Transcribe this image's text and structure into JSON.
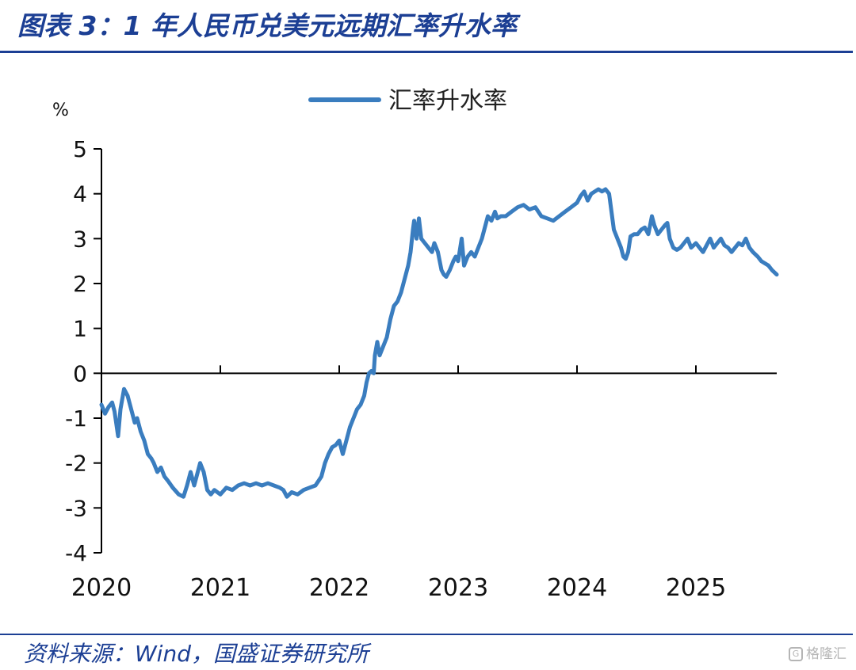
{
  "figure": {
    "title": "图表 3：1 年人民币兑美元远期汇率升水率",
    "source": "资料来源：Wind，国盛证券研究所",
    "watermark": "格隆汇"
  },
  "colors": {
    "line": "#3a7dbf",
    "accent": "#1c3f94",
    "axis": "#000000"
  },
  "chart_data": {
    "type": "line",
    "title": "",
    "xlabel": "",
    "ylabel": "%",
    "x_ticks": [
      "2020",
      "2021",
      "2022",
      "2023",
      "2024",
      "2025"
    ],
    "xlim": [
      2020.0,
      2025.68
    ],
    "ylim": [
      -4,
      5
    ],
    "y_ticks": [
      5,
      4,
      3,
      2,
      1,
      0,
      -1,
      -2,
      -3,
      -4
    ],
    "legend": "top-center",
    "grid": false,
    "series": [
      {
        "name": "汇率升水率",
        "points": [
          [
            2020.0,
            -0.7
          ],
          [
            2020.03,
            -0.9
          ],
          [
            2020.06,
            -0.75
          ],
          [
            2020.09,
            -0.65
          ],
          [
            2020.11,
            -0.85
          ],
          [
            2020.14,
            -1.4
          ],
          [
            2020.16,
            -0.8
          ],
          [
            2020.19,
            -0.35
          ],
          [
            2020.22,
            -0.5
          ],
          [
            2020.25,
            -0.8
          ],
          [
            2020.28,
            -1.1
          ],
          [
            2020.3,
            -1.0
          ],
          [
            2020.33,
            -1.3
          ],
          [
            2020.36,
            -1.5
          ],
          [
            2020.39,
            -1.8
          ],
          [
            2020.42,
            -1.9
          ],
          [
            2020.44,
            -2.0
          ],
          [
            2020.47,
            -2.2
          ],
          [
            2020.5,
            -2.1
          ],
          [
            2020.53,
            -2.3
          ],
          [
            2020.56,
            -2.4
          ],
          [
            2020.6,
            -2.55
          ],
          [
            2020.65,
            -2.7
          ],
          [
            2020.69,
            -2.75
          ],
          [
            2020.72,
            -2.5
          ],
          [
            2020.75,
            -2.2
          ],
          [
            2020.78,
            -2.5
          ],
          [
            2020.8,
            -2.3
          ],
          [
            2020.83,
            -2.0
          ],
          [
            2020.86,
            -2.2
          ],
          [
            2020.89,
            -2.6
          ],
          [
            2020.92,
            -2.7
          ],
          [
            2020.95,
            -2.6
          ],
          [
            2021.0,
            -2.7
          ],
          [
            2021.05,
            -2.55
          ],
          [
            2021.1,
            -2.6
          ],
          [
            2021.15,
            -2.5
          ],
          [
            2021.2,
            -2.45
          ],
          [
            2021.25,
            -2.5
          ],
          [
            2021.3,
            -2.45
          ],
          [
            2021.35,
            -2.5
          ],
          [
            2021.4,
            -2.45
          ],
          [
            2021.45,
            -2.5
          ],
          [
            2021.5,
            -2.55
          ],
          [
            2021.53,
            -2.6
          ],
          [
            2021.56,
            -2.75
          ],
          [
            2021.6,
            -2.65
          ],
          [
            2021.65,
            -2.7
          ],
          [
            2021.7,
            -2.6
          ],
          [
            2021.75,
            -2.55
          ],
          [
            2021.8,
            -2.5
          ],
          [
            2021.85,
            -2.3
          ],
          [
            2021.88,
            -2.0
          ],
          [
            2021.91,
            -1.8
          ],
          [
            2021.94,
            -1.65
          ],
          [
            2021.97,
            -1.6
          ],
          [
            2022.0,
            -1.5
          ],
          [
            2022.03,
            -1.8
          ],
          [
            2022.06,
            -1.5
          ],
          [
            2022.09,
            -1.2
          ],
          [
            2022.12,
            -1.0
          ],
          [
            2022.15,
            -0.8
          ],
          [
            2022.18,
            -0.7
          ],
          [
            2022.21,
            -0.5
          ],
          [
            2022.23,
            -0.2
          ],
          [
            2022.25,
            0.0
          ],
          [
            2022.27,
            0.05
          ],
          [
            2022.29,
            0.0
          ],
          [
            2022.3,
            0.4
          ],
          [
            2022.32,
            0.7
          ],
          [
            2022.34,
            0.4
          ],
          [
            2022.37,
            0.6
          ],
          [
            2022.4,
            0.8
          ],
          [
            2022.43,
            1.2
          ],
          [
            2022.46,
            1.5
          ],
          [
            2022.49,
            1.6
          ],
          [
            2022.52,
            1.8
          ],
          [
            2022.55,
            2.1
          ],
          [
            2022.58,
            2.4
          ],
          [
            2022.6,
            2.7
          ],
          [
            2022.62,
            3.2
          ],
          [
            2022.63,
            3.4
          ],
          [
            2022.65,
            3.0
          ],
          [
            2022.67,
            3.45
          ],
          [
            2022.69,
            3.0
          ],
          [
            2022.72,
            2.9
          ],
          [
            2022.75,
            2.8
          ],
          [
            2022.78,
            2.7
          ],
          [
            2022.8,
            2.9
          ],
          [
            2022.83,
            2.7
          ],
          [
            2022.86,
            2.3
          ],
          [
            2022.88,
            2.2
          ],
          [
            2022.9,
            2.15
          ],
          [
            2022.93,
            2.3
          ],
          [
            2022.96,
            2.5
          ],
          [
            2022.98,
            2.6
          ],
          [
            2023.0,
            2.5
          ],
          [
            2023.03,
            3.0
          ],
          [
            2023.05,
            2.4
          ],
          [
            2023.08,
            2.6
          ],
          [
            2023.11,
            2.7
          ],
          [
            2023.14,
            2.6
          ],
          [
            2023.17,
            2.8
          ],
          [
            2023.2,
            3.0
          ],
          [
            2023.23,
            3.3
          ],
          [
            2023.25,
            3.5
          ],
          [
            2023.28,
            3.4
          ],
          [
            2023.31,
            3.6
          ],
          [
            2023.33,
            3.45
          ],
          [
            2023.36,
            3.5
          ],
          [
            2023.4,
            3.5
          ],
          [
            2023.45,
            3.6
          ],
          [
            2023.5,
            3.7
          ],
          [
            2023.55,
            3.75
          ],
          [
            2023.6,
            3.65
          ],
          [
            2023.65,
            3.7
          ],
          [
            2023.7,
            3.5
          ],
          [
            2023.75,
            3.45
          ],
          [
            2023.8,
            3.4
          ],
          [
            2023.85,
            3.5
          ],
          [
            2023.9,
            3.6
          ],
          [
            2023.95,
            3.7
          ],
          [
            2024.0,
            3.8
          ],
          [
            2024.03,
            3.95
          ],
          [
            2024.06,
            4.05
          ],
          [
            2024.09,
            3.85
          ],
          [
            2024.12,
            4.0
          ],
          [
            2024.15,
            4.05
          ],
          [
            2024.18,
            4.1
          ],
          [
            2024.21,
            4.05
          ],
          [
            2024.24,
            4.1
          ],
          [
            2024.27,
            4.0
          ],
          [
            2024.29,
            3.6
          ],
          [
            2024.31,
            3.2
          ],
          [
            2024.34,
            3.0
          ],
          [
            2024.37,
            2.8
          ],
          [
            2024.39,
            2.6
          ],
          [
            2024.41,
            2.55
          ],
          [
            2024.43,
            2.7
          ],
          [
            2024.45,
            3.05
          ],
          [
            2024.48,
            3.1
          ],
          [
            2024.51,
            3.1
          ],
          [
            2024.54,
            3.2
          ],
          [
            2024.57,
            3.25
          ],
          [
            2024.6,
            3.1
          ],
          [
            2024.63,
            3.5
          ],
          [
            2024.65,
            3.3
          ],
          [
            2024.68,
            3.1
          ],
          [
            2024.71,
            3.2
          ],
          [
            2024.74,
            3.3
          ],
          [
            2024.76,
            3.35
          ],
          [
            2024.78,
            3.0
          ],
          [
            2024.81,
            2.8
          ],
          [
            2024.84,
            2.75
          ],
          [
            2024.87,
            2.8
          ],
          [
            2024.9,
            2.9
          ],
          [
            2024.93,
            3.0
          ],
          [
            2024.96,
            2.8
          ],
          [
            2025.0,
            2.9
          ],
          [
            2025.03,
            2.8
          ],
          [
            2025.06,
            2.7
          ],
          [
            2025.09,
            2.85
          ],
          [
            2025.12,
            3.0
          ],
          [
            2025.15,
            2.8
          ],
          [
            2025.18,
            2.9
          ],
          [
            2025.21,
            3.0
          ],
          [
            2025.24,
            2.85
          ],
          [
            2025.27,
            2.8
          ],
          [
            2025.3,
            2.7
          ],
          [
            2025.33,
            2.8
          ],
          [
            2025.36,
            2.9
          ],
          [
            2025.39,
            2.85
          ],
          [
            2025.42,
            3.0
          ],
          [
            2025.45,
            2.8
          ],
          [
            2025.48,
            2.7
          ],
          [
            2025.52,
            2.6
          ],
          [
            2025.55,
            2.5
          ],
          [
            2025.58,
            2.45
          ],
          [
            2025.61,
            2.4
          ],
          [
            2025.64,
            2.3
          ],
          [
            2025.68,
            2.2
          ]
        ]
      }
    ]
  }
}
